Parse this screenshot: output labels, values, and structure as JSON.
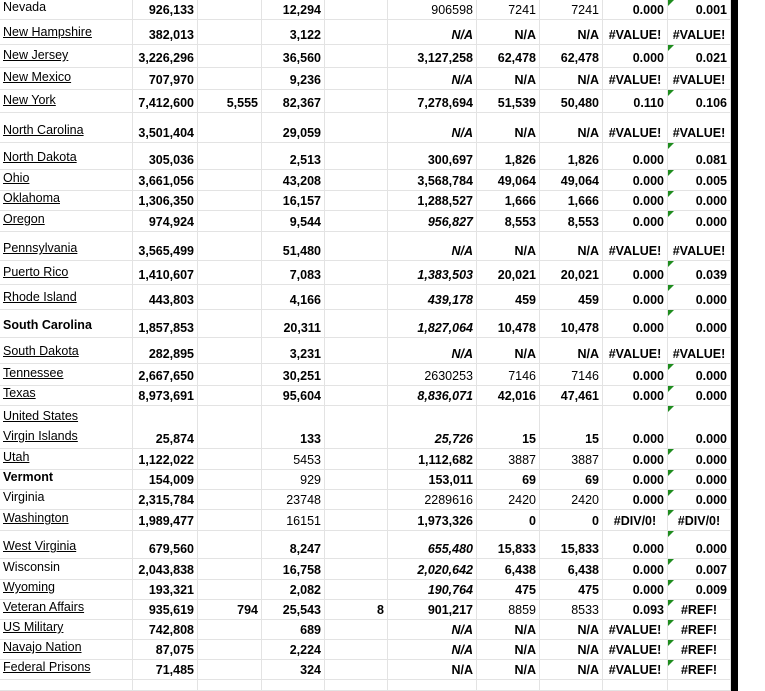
{
  "table": {
    "rows": [
      [
        "Nevada",
        "926,133",
        null,
        "12,294",
        null,
        "906598",
        "7241",
        "7241",
        "0.000",
        "0.001"
      ],
      [
        "New Hampshire",
        "382,013",
        null,
        "3,122",
        null,
        "N/A",
        "N/A",
        "N/A",
        "#VALUE!",
        "#VALUE!"
      ],
      [
        "New Jersey",
        "3,226,296",
        null,
        "36,560",
        null,
        "3,127,258",
        "62,478",
        "62,478",
        "0.000",
        "0.021"
      ],
      [
        "New Mexico",
        "707,970",
        null,
        "9,236",
        null,
        "N/A",
        "N/A",
        "N/A",
        "#VALUE!",
        "#VALUE!"
      ],
      [
        "New York",
        "7,412,600",
        "5,555",
        "82,367",
        null,
        "7,278,694",
        "51,539",
        "50,480",
        "0.110",
        "0.106"
      ],
      [
        "North Carolina",
        "3,501,404",
        null,
        "29,059",
        null,
        "N/A",
        "N/A",
        "N/A",
        "#VALUE!",
        "#VALUE!"
      ],
      [
        "North Dakota",
        "305,036",
        null,
        "2,513",
        null,
        "300,697",
        "1,826",
        "1,826",
        "0.000",
        "0.081"
      ],
      [
        "Ohio",
        "3,661,056",
        null,
        "43,208",
        null,
        "3,568,784",
        "49,064",
        "49,064",
        "0.000",
        "0.005"
      ],
      [
        "Oklahoma",
        "1,306,350",
        null,
        "16,157",
        null,
        "1,288,527",
        "1,666",
        "1,666",
        "0.000",
        "0.000"
      ],
      [
        "Oregon",
        "974,924",
        null,
        "9,544",
        null,
        "956,827",
        "8,553",
        "8,553",
        "0.000",
        "0.000"
      ],
      [
        "Pennsylvania",
        "3,565,499",
        null,
        "51,480",
        null,
        "N/A",
        "N/A",
        "N/A",
        "#VALUE!",
        "#VALUE!"
      ],
      [
        "Puerto Rico",
        "1,410,607",
        null,
        "7,083",
        null,
        "1,383,503",
        "20,021",
        "20,021",
        "0.000",
        "0.039"
      ],
      [
        "Rhode Island",
        "443,803",
        null,
        "4,166",
        null,
        "439,178",
        "459",
        "459",
        "0.000",
        "0.000"
      ],
      [
        "South Carolina",
        "1,857,853",
        null,
        "20,311",
        null,
        "1,827,064",
        "10,478",
        "10,478",
        "0.000",
        "0.000"
      ],
      [
        "South Dakota",
        "282,895",
        null,
        "3,231",
        null,
        "N/A",
        "N/A",
        "N/A",
        "#VALUE!",
        "#VALUE!"
      ],
      [
        "Tennessee",
        "2,667,650",
        null,
        "30,251",
        null,
        "2630253",
        "7146",
        "7146",
        "0.000",
        "0.000"
      ],
      [
        "Texas",
        "8,973,691",
        null,
        "95,604",
        null,
        "8,836,071",
        "42,016",
        "47,461",
        "0.000",
        "0.000"
      ],
      [
        "United States Virgin Islands",
        "25,874",
        null,
        "133",
        null,
        "25,726",
        "15",
        "15",
        "0.000",
        "0.000"
      ],
      [
        "Utah",
        "1,122,022",
        null,
        "5453",
        null,
        "1,112,682",
        "3887",
        "3887",
        "0.000",
        "0.000"
      ],
      [
        "Vermont",
        "154,009",
        null,
        "929",
        null,
        "153,011",
        "69",
        "69",
        "0.000",
        "0.000"
      ],
      [
        "Virginia",
        "2,315,784",
        null,
        "23748",
        null,
        "2289616",
        "2420",
        "2420",
        "0.000",
        "0.000"
      ],
      [
        "Washington",
        "1,989,477",
        null,
        "16151",
        null,
        "1,973,326",
        "0",
        "0",
        "#DIV/0!",
        "#DIV/0!"
      ],
      [
        "West Virginia",
        "679,560",
        null,
        "8,247",
        null,
        "655,480",
        "15,833",
        "15,833",
        "0.000",
        "0.000"
      ],
      [
        "Wisconsin",
        "2,043,838",
        null,
        "16,758",
        null,
        "2,020,642",
        "6,438",
        "6,438",
        "0.000",
        "0.007"
      ],
      [
        "Wyoming",
        "193,321",
        null,
        "2,082",
        null,
        "190,764",
        "475",
        "475",
        "0.000",
        "0.009"
      ],
      [
        "Veteran Affairs",
        "935,619",
        "794",
        "25,543",
        "8",
        "901,217",
        "8859",
        "8533",
        "0.093",
        "#REF!"
      ],
      [
        "US Military",
        "742,808",
        null,
        "689",
        null,
        "N/A",
        "N/A",
        "N/A",
        "#VALUE!",
        "#REF!"
      ],
      [
        "Navajo Nation",
        "87,075",
        null,
        "2,224",
        null,
        "N/A",
        "N/A",
        "N/A",
        "#VALUE!",
        "#REF!"
      ],
      [
        "Federal Prisons",
        "71,485",
        null,
        "324",
        null,
        "N/A",
        "N/A",
        "N/A",
        "#VALUE!",
        "#REF!"
      ]
    ]
  }
}
